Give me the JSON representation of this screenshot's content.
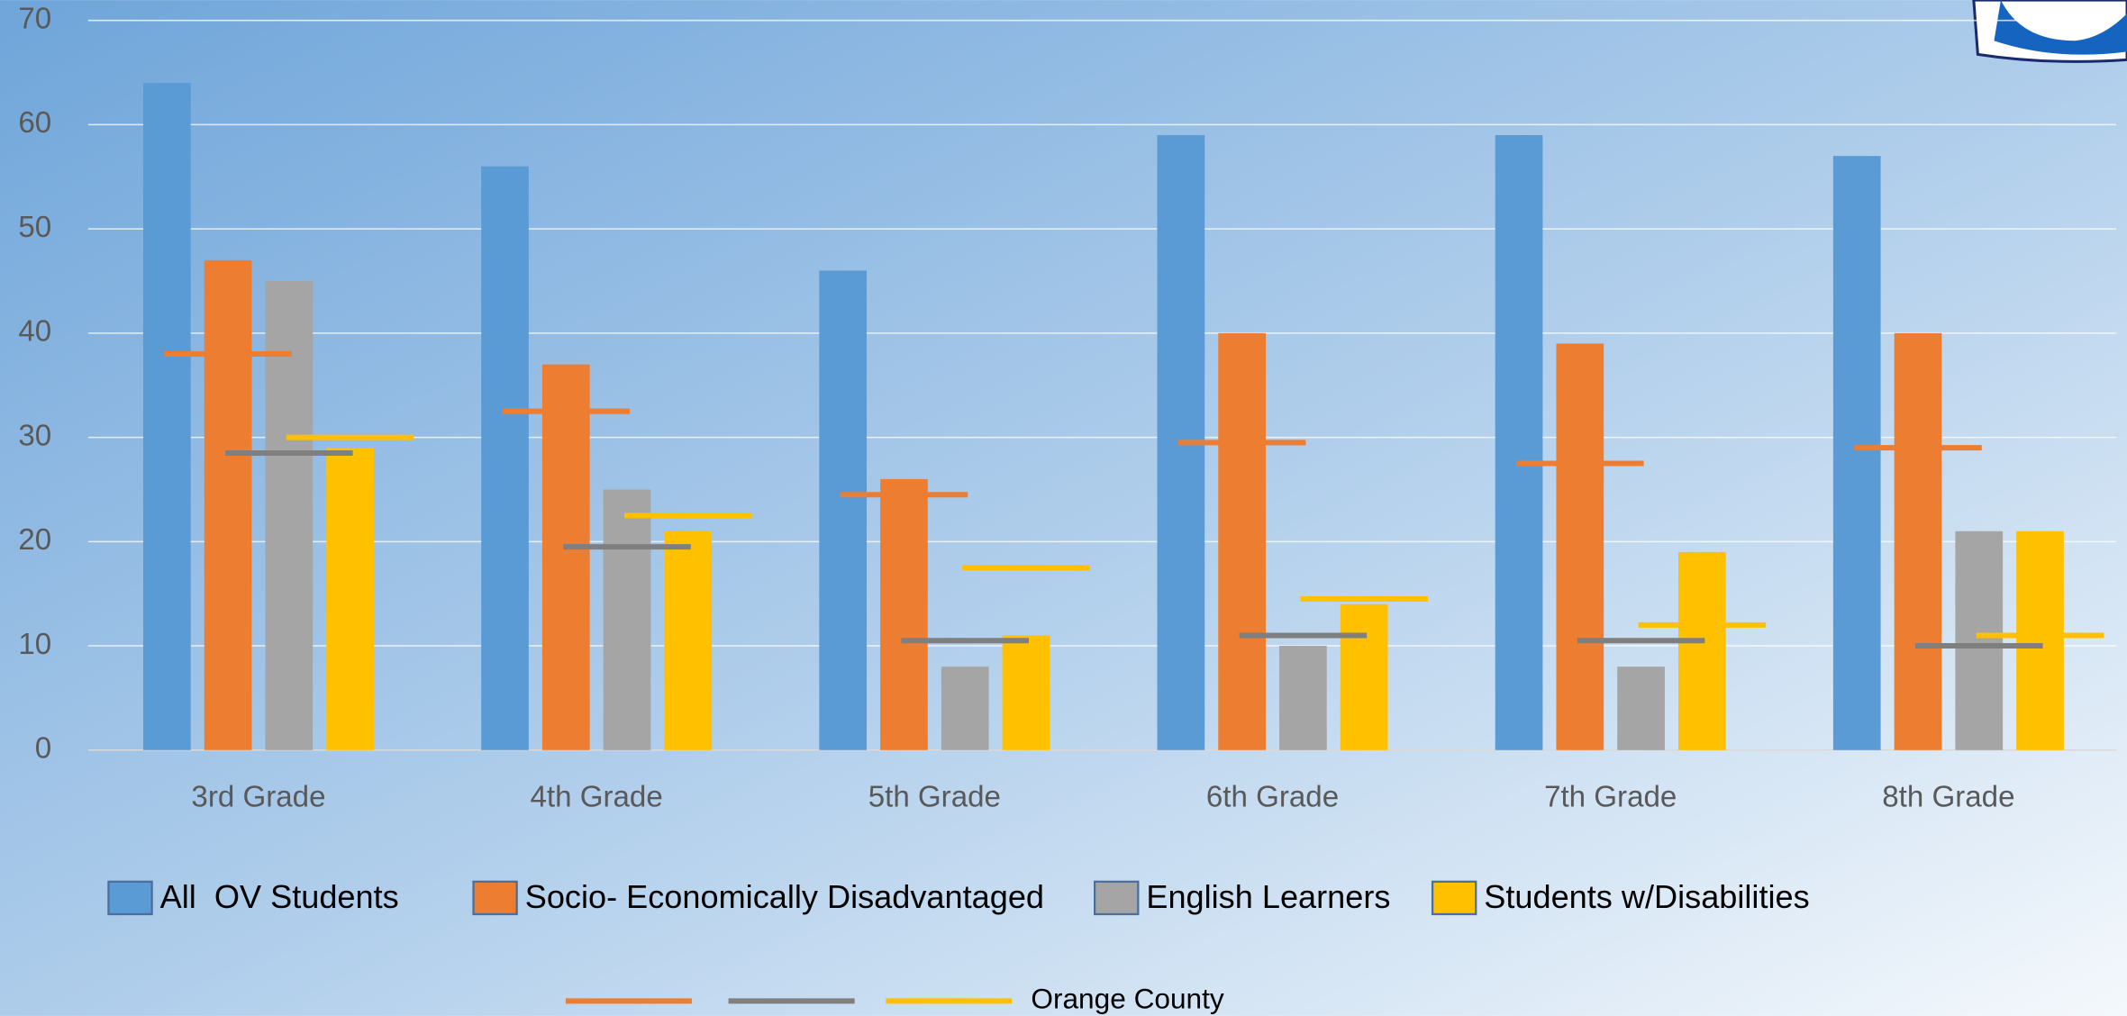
{
  "chart_data": {
    "type": "bar",
    "categories": [
      "3rd Grade",
      "4th Grade",
      "5th Grade",
      "6th Grade",
      "7th Grade",
      "8th Grade"
    ],
    "series": [
      {
        "name": "All  OV Students",
        "color": "#5b9bd5",
        "values": [
          64,
          56,
          46,
          59,
          59,
          57
        ]
      },
      {
        "name": "Socio- Economically Disadvantaged",
        "color": "#ed7d31",
        "values": [
          47,
          37,
          26,
          40,
          39,
          40
        ]
      },
      {
        "name": "English Learners",
        "color": "#a5a5a5",
        "values": [
          45,
          25,
          8,
          10,
          8,
          21
        ]
      },
      {
        "name": "Students w/Disabilities",
        "color": "#ffc000",
        "values": [
          29,
          21,
          11,
          14,
          19,
          21
        ]
      }
    ],
    "overlay_label": "Orange County",
    "overlay_series": [
      {
        "color": "#ed7d31",
        "values": [
          38,
          32.5,
          24.5,
          29.5,
          27.5,
          29
        ]
      },
      {
        "color": "#7f7f7f",
        "values": [
          28.5,
          19.5,
          10.5,
          11,
          10.5,
          10
        ]
      },
      {
        "color": "#ffc000",
        "values": [
          30,
          22.5,
          17.5,
          14.5,
          12,
          11
        ]
      }
    ],
    "ylim": [
      0,
      70
    ],
    "yticks": [
      0,
      10,
      20,
      30,
      40,
      50,
      60,
      70
    ],
    "grid": true
  }
}
